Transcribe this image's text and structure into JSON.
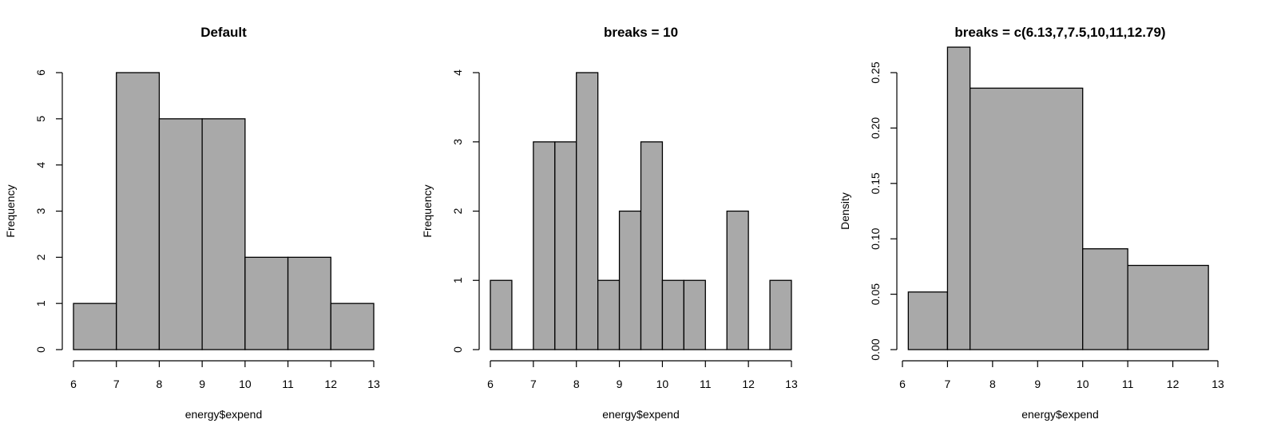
{
  "colors": {
    "bar_fill": "#a9a9a9",
    "bar_stroke": "#000000",
    "background": "#ffffff"
  },
  "chart_data": [
    {
      "type": "bar",
      "title": "Default",
      "xlabel": "energy$expend",
      "ylabel": "Frequency",
      "xlim": [
        6,
        13
      ],
      "ylim": [
        0,
        6
      ],
      "xticks": [
        "6",
        "7",
        "8",
        "9",
        "10",
        "11",
        "12",
        "13"
      ],
      "yticks": [
        "0",
        "1",
        "2",
        "3",
        "4",
        "5",
        "6"
      ],
      "bins": [
        {
          "x0": 6,
          "x1": 7,
          "value": 1
        },
        {
          "x0": 7,
          "x1": 8,
          "value": 6
        },
        {
          "x0": 8,
          "x1": 9,
          "value": 5
        },
        {
          "x0": 9,
          "x1": 10,
          "value": 5
        },
        {
          "x0": 10,
          "x1": 11,
          "value": 2
        },
        {
          "x0": 11,
          "x1": 12,
          "value": 2
        },
        {
          "x0": 12,
          "x1": 13,
          "value": 1
        }
      ]
    },
    {
      "type": "bar",
      "title": "breaks = 10",
      "xlabel": "energy$expend",
      "ylabel": "Frequency",
      "xlim": [
        6,
        13
      ],
      "ylim": [
        0,
        4
      ],
      "xticks": [
        "6",
        "7",
        "8",
        "9",
        "10",
        "11",
        "12",
        "13"
      ],
      "yticks": [
        "0",
        "1",
        "2",
        "3",
        "4"
      ],
      "bins": [
        {
          "x0": 6,
          "x1": 6.5,
          "value": 1
        },
        {
          "x0": 6.5,
          "x1": 7,
          "value": 0
        },
        {
          "x0": 7,
          "x1": 7.5,
          "value": 3
        },
        {
          "x0": 7.5,
          "x1": 8,
          "value": 3
        },
        {
          "x0": 8,
          "x1": 8.5,
          "value": 4
        },
        {
          "x0": 8.5,
          "x1": 9,
          "value": 1
        },
        {
          "x0": 9,
          "x1": 9.5,
          "value": 2
        },
        {
          "x0": 9.5,
          "x1": 10,
          "value": 3
        },
        {
          "x0": 10,
          "x1": 10.5,
          "value": 1
        },
        {
          "x0": 10.5,
          "x1": 11,
          "value": 1
        },
        {
          "x0": 11,
          "x1": 11.5,
          "value": 0
        },
        {
          "x0": 11.5,
          "x1": 12,
          "value": 2
        },
        {
          "x0": 12,
          "x1": 12.5,
          "value": 0
        },
        {
          "x0": 12.5,
          "x1": 13,
          "value": 1
        }
      ]
    },
    {
      "type": "bar",
      "title": "breaks = c(6.13,7,7.5,10,11,12.79)",
      "xlabel": "energy$expend",
      "ylabel": "Density",
      "xlim": [
        6,
        13
      ],
      "ylim": [
        0,
        0.25
      ],
      "xticks": [
        "6",
        "7",
        "8",
        "9",
        "10",
        "11",
        "12",
        "13"
      ],
      "yticks": [
        "0.00",
        "0.05",
        "0.10",
        "0.15",
        "0.20",
        "0.25"
      ],
      "bins": [
        {
          "x0": 6.13,
          "x1": 7,
          "value": 0.052
        },
        {
          "x0": 7,
          "x1": 7.5,
          "value": 0.273
        },
        {
          "x0": 7.5,
          "x1": 10,
          "value": 0.236
        },
        {
          "x0": 10,
          "x1": 11,
          "value": 0.091
        },
        {
          "x0": 11,
          "x1": 12.79,
          "value": 0.076
        }
      ]
    }
  ]
}
